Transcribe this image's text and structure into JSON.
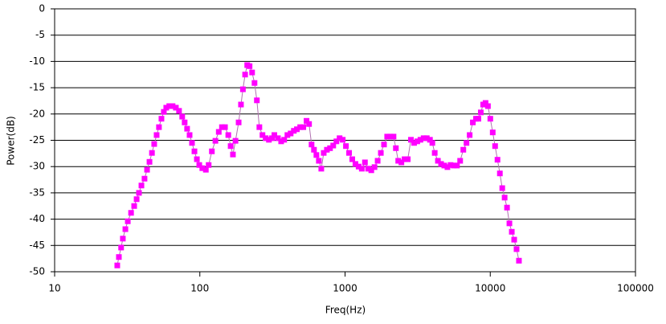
{
  "chart_data": {
    "type": "line",
    "x_label": "Freq(Hz)",
    "y_label": "Power(dB)",
    "log_x": true,
    "grid": true,
    "marker": "square",
    "xlim": [
      10,
      100000
    ],
    "xticks": [
      10,
      100,
      1000,
      10000,
      100000
    ],
    "ylim": [
      -50,
      0
    ],
    "yticks": [
      0,
      -5,
      -10,
      -15,
      -20,
      -25,
      -30,
      -35,
      -40,
      -45,
      -50
    ],
    "x": [
      27.0,
      27.7,
      28.7,
      29.5,
      30.7,
      31.9,
      33.6,
      35.3,
      36.7,
      38.1,
      39.6,
      41.6,
      43.3,
      45.0,
      46.8,
      48.5,
      50.4,
      52.3,
      54.4,
      56.5,
      58.7,
      61.6,
      64.9,
      68.4,
      71.9,
      75.6,
      78.6,
      81.7,
      85.0,
      88.3,
      91.8,
      95.4,
      99.1,
      104,
      110,
      115,
      121,
      128,
      135,
      142,
      149,
      157,
      163,
      169,
      176,
      185,
      192,
      198,
      205,
      212,
      220,
      229,
      238,
      247,
      257,
      270,
      284,
      299,
      314,
      326,
      345,
      363,
      381,
      401,
      422,
      444,
      466,
      491,
      516,
      543,
      565,
      588,
      611,
      635,
      660,
      686,
      713,
      750,
      788,
      829,
      872,
      917,
      964,
      1014,
      1066,
      1121,
      1179,
      1240,
      1304,
      1371,
      1442,
      1516,
      1595,
      1677,
      1764,
      1855,
      1950,
      2051,
      2157,
      2239,
      2324,
      2444,
      2570,
      2703,
      2842,
      2989,
      3143,
      3305,
      3476,
      3655,
      3844,
      3992,
      4146,
      4360,
      4585,
      4822,
      5071,
      5333,
      5608,
      5898,
      6203,
      6523,
      6860,
      7214,
      7587,
      7978,
      8286,
      8605,
      8937,
      9281,
      9639,
      10010,
      10397,
      10798,
      11214,
      11646,
      12094,
      12560,
      13044,
      13547,
      14069,
      14611,
      15175,
      15759
    ],
    "series": [
      {
        "color": "#ff00ff",
        "line_color": "#b070b0",
        "values": [
          -48.8,
          -47.2,
          -45.4,
          -43.7,
          -41.9,
          -40.4,
          -38.8,
          -37.5,
          -36.2,
          -35.0,
          -33.6,
          -32.3,
          -30.6,
          -29.1,
          -27.4,
          -25.7,
          -24.0,
          -22.5,
          -20.9,
          -19.6,
          -18.8,
          -18.5,
          -18.5,
          -18.8,
          -19.4,
          -20.5,
          -21.6,
          -22.8,
          -24.0,
          -25.5,
          -27.1,
          -28.6,
          -29.7,
          -30.3,
          -30.6,
          -29.7,
          -27.1,
          -25.1,
          -23.4,
          -22.5,
          -22.5,
          -24.0,
          -26.1,
          -27.7,
          -25.1,
          -21.6,
          -18.2,
          -15.3,
          -12.5,
          -10.7,
          -10.9,
          -12.1,
          -14.1,
          -17.4,
          -22.5,
          -24.0,
          -24.6,
          -24.9,
          -24.6,
          -24.0,
          -24.6,
          -25.2,
          -24.9,
          -24.0,
          -23.7,
          -23.2,
          -22.9,
          -22.5,
          -22.5,
          -21.3,
          -21.9,
          -25.8,
          -26.8,
          -27.8,
          -28.9,
          -30.4,
          -27.4,
          -26.8,
          -26.5,
          -26.0,
          -25.2,
          -24.6,
          -24.9,
          -26.1,
          -27.4,
          -28.6,
          -29.5,
          -30.0,
          -30.4,
          -29.2,
          -30.4,
          -30.7,
          -30.1,
          -28.9,
          -27.4,
          -25.8,
          -24.3,
          -24.3,
          -24.3,
          -26.5,
          -28.9,
          -29.2,
          -28.6,
          -28.6,
          -24.9,
          -25.5,
          -25.2,
          -24.9,
          -24.6,
          -24.6,
          -24.9,
          -25.5,
          -27.4,
          -28.9,
          -29.5,
          -29.8,
          -30.1,
          -29.7,
          -29.8,
          -29.8,
          -28.9,
          -26.8,
          -25.5,
          -24.0,
          -21.6,
          -20.9,
          -20.9,
          -19.7,
          -18.2,
          -17.9,
          -18.5,
          -20.9,
          -23.5,
          -26.1,
          -28.7,
          -31.3,
          -34.1,
          -35.9,
          -37.8,
          -40.8,
          -42.4,
          -43.9,
          -45.7,
          -47.9
        ]
      }
    ]
  }
}
